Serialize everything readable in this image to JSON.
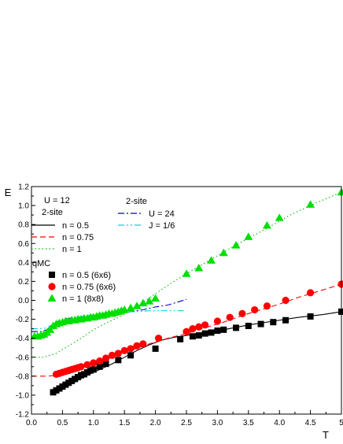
{
  "chart_data": {
    "type": "line",
    "xlabel": "T",
    "ylabel": "E",
    "xlim": [
      0,
      5
    ],
    "ylim": [
      -1.2,
      1.2
    ],
    "x_ticks": [
      "0.0",
      "0.5",
      "1.0",
      "1.5",
      "2.0",
      "2.5",
      "3.0",
      "3.5",
      "4.0",
      "4.5",
      "5"
    ],
    "y_ticks": [
      "-1.2",
      "-1.0",
      "-0.8",
      "-0.6",
      "-0.4",
      "-0.2",
      "0.0",
      "0.2",
      "0.4",
      "0.6",
      "0.8",
      "1.0",
      "1.2"
    ],
    "grid": false,
    "legend_left": {
      "title": "U = 12",
      "group1_title": "2-site",
      "group2_title": "qMC",
      "entries": [
        "n = 0.5",
        "n = 0.75",
        "n = 1",
        "n = 0.5 (6x6)",
        "n = 0.75 (6x6)",
        "n = 1 (8x8)"
      ]
    },
    "legend_right": {
      "title": "2-site",
      "entries": [
        "U = 24",
        "J = 1/6"
      ]
    },
    "series": [
      {
        "name": "n = 0.5",
        "kind": "line",
        "color": "#000000",
        "dash": "solid",
        "x": [
          0.35,
          0.5,
          0.7,
          0.9,
          1.1,
          1.3,
          1.5,
          1.7,
          1.9,
          2.1,
          2.3,
          2.5,
          2.8,
          3.1,
          3.5,
          3.9,
          4.3,
          4.7,
          5.0
        ],
        "y": [
          -0.97,
          -0.93,
          -0.86,
          -0.79,
          -0.73,
          -0.67,
          -0.6,
          -0.53,
          -0.47,
          -0.42,
          -0.39,
          -0.37,
          -0.34,
          -0.31,
          -0.26,
          -0.22,
          -0.18,
          -0.15,
          -0.12
        ]
      },
      {
        "name": "n = 0.75",
        "kind": "line",
        "color": "#ff0000",
        "dash": "dashed",
        "x": [
          0.0,
          0.25,
          0.45,
          0.7,
          1.0,
          1.3,
          1.6,
          1.9,
          2.2,
          2.5,
          2.8,
          3.1,
          3.4,
          3.7,
          4.0,
          4.3,
          4.6,
          5.0
        ],
        "y": [
          -0.8,
          -0.8,
          -0.79,
          -0.73,
          -0.67,
          -0.6,
          -0.53,
          -0.46,
          -0.4,
          -0.35,
          -0.29,
          -0.23,
          -0.16,
          -0.1,
          -0.04,
          0.03,
          0.09,
          0.17
        ]
      },
      {
        "name": "n = 1",
        "kind": "line",
        "color": "#00bb00",
        "dash": "dotted",
        "x": [
          0.0,
          0.2,
          0.4,
          0.6,
          0.8,
          1.0,
          1.2,
          1.4,
          1.6,
          1.8,
          2.0,
          2.3,
          2.6,
          3.0,
          3.4,
          3.8,
          4.2,
          4.6,
          5.0
        ],
        "y": [
          -0.6,
          -0.6,
          -0.56,
          -0.48,
          -0.4,
          -0.31,
          -0.24,
          -0.18,
          -0.11,
          -0.02,
          0.07,
          0.2,
          0.32,
          0.47,
          0.62,
          0.76,
          0.91,
          1.03,
          1.14
        ]
      },
      {
        "name": "U = 24",
        "kind": "line",
        "color": "#0000cc",
        "dash": "dashdot",
        "x": [
          0.0,
          0.15,
          0.25,
          0.35,
          0.45,
          0.6,
          0.8,
          1.0,
          1.2,
          1.4,
          1.6,
          1.8,
          2.0,
          2.2,
          2.4,
          2.5
        ],
        "y": [
          -0.33,
          -0.33,
          -0.31,
          -0.26,
          -0.21,
          -0.19,
          -0.18,
          -0.17,
          -0.16,
          -0.14,
          -0.12,
          -0.1,
          -0.07,
          -0.05,
          -0.01,
          0.01
        ]
      },
      {
        "name": "J = 1/6",
        "kind": "line",
        "color": "#00d8d8",
        "dash": "dashdotdot",
        "x": [
          0.0,
          0.15,
          0.25,
          0.35,
          0.5,
          0.7,
          0.9,
          1.1,
          1.3,
          1.5,
          1.7,
          1.9,
          2.1,
          2.3,
          2.5
        ],
        "y": [
          -0.3,
          -0.3,
          -0.29,
          -0.25,
          -0.21,
          -0.18,
          -0.16,
          -0.14,
          -0.13,
          -0.12,
          -0.12,
          -0.11,
          -0.11,
          -0.11,
          -0.11
        ]
      },
      {
        "name": "n = 0.5 (6x6)",
        "kind": "marker",
        "marker": "square",
        "color": "#000000",
        "x": [
          0.35,
          0.4,
          0.45,
          0.5,
          0.55,
          0.6,
          0.65,
          0.7,
          0.75,
          0.8,
          0.85,
          0.9,
          0.95,
          1.0,
          1.1,
          1.2,
          1.4,
          1.6,
          2.0,
          2.4,
          2.6,
          2.7,
          2.8,
          2.9,
          3.0,
          3.1,
          3.3,
          3.5,
          3.7,
          3.9,
          4.1,
          4.5,
          5.0
        ],
        "y": [
          -0.97,
          -0.95,
          -0.93,
          -0.91,
          -0.89,
          -0.87,
          -0.85,
          -0.83,
          -0.81,
          -0.79,
          -0.78,
          -0.76,
          -0.74,
          -0.73,
          -0.7,
          -0.67,
          -0.63,
          -0.58,
          -0.51,
          -0.41,
          -0.38,
          -0.37,
          -0.35,
          -0.34,
          -0.32,
          -0.31,
          -0.29,
          -0.27,
          -0.25,
          -0.23,
          -0.21,
          -0.17,
          -0.12
        ]
      },
      {
        "name": "n = 0.75 (6x6)",
        "kind": "marker",
        "marker": "circle",
        "color": "#ff0000",
        "x": [
          0.4,
          0.45,
          0.5,
          0.55,
          0.6,
          0.65,
          0.7,
          0.75,
          0.8,
          0.9,
          1.0,
          1.1,
          1.2,
          1.3,
          1.4,
          1.5,
          1.6,
          1.7,
          1.8,
          2.05,
          2.5,
          2.6,
          2.7,
          2.8,
          3.0,
          3.2,
          3.4,
          3.6,
          3.8,
          4.1,
          4.5,
          5.0
        ],
        "y": [
          -0.78,
          -0.77,
          -0.76,
          -0.75,
          -0.74,
          -0.73,
          -0.72,
          -0.71,
          -0.7,
          -0.68,
          -0.66,
          -0.64,
          -0.61,
          -0.58,
          -0.56,
          -0.53,
          -0.51,
          -0.48,
          -0.46,
          -0.4,
          -0.33,
          -0.3,
          -0.28,
          -0.26,
          -0.22,
          -0.18,
          -0.14,
          -0.1,
          -0.06,
          0.0,
          0.08,
          0.17
        ]
      },
      {
        "name": "n = 1 (8x8)",
        "kind": "marker",
        "marker": "triangle",
        "color": "#00e000",
        "x": [
          0.05,
          0.1,
          0.15,
          0.2,
          0.25,
          0.3,
          0.35,
          0.4,
          0.45,
          0.5,
          0.55,
          0.6,
          0.65,
          0.7,
          0.75,
          0.8,
          0.85,
          0.9,
          0.95,
          1.0,
          1.05,
          1.1,
          1.15,
          1.2,
          1.25,
          1.3,
          1.35,
          1.4,
          1.45,
          1.5,
          1.6,
          1.7,
          1.8,
          1.9,
          2.0,
          2.5,
          2.7,
          2.9,
          3.1,
          3.3,
          3.5,
          3.8,
          4.0,
          4.5,
          5.0
        ],
        "y": [
          -0.38,
          -0.38,
          -0.37,
          -0.36,
          -0.34,
          -0.31,
          -0.27,
          -0.25,
          -0.24,
          -0.23,
          -0.22,
          -0.22,
          -0.21,
          -0.21,
          -0.2,
          -0.2,
          -0.19,
          -0.19,
          -0.18,
          -0.18,
          -0.17,
          -0.16,
          -0.16,
          -0.15,
          -0.14,
          -0.14,
          -0.13,
          -0.12,
          -0.11,
          -0.1,
          -0.08,
          -0.06,
          -0.03,
          -0.01,
          0.02,
          0.28,
          0.34,
          0.42,
          0.5,
          0.58,
          0.67,
          0.79,
          0.87,
          1.01,
          1.14
        ]
      }
    ]
  }
}
